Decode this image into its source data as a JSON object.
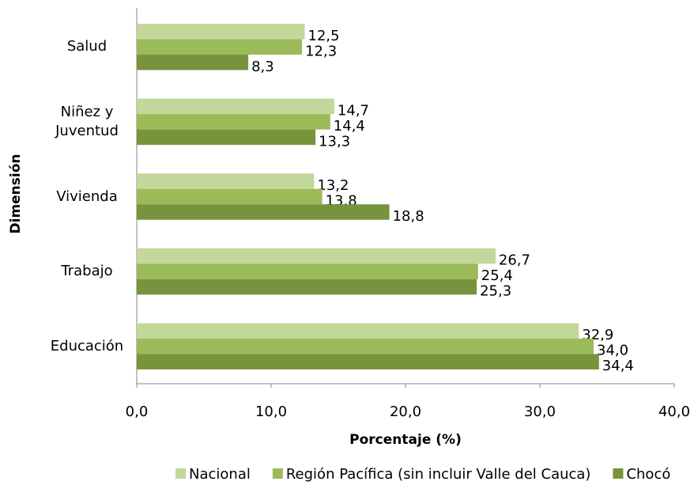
{
  "chart_data": {
    "type": "barh",
    "categories": [
      "Salud",
      "Niñez y Juventud",
      "Vivienda",
      "Trabajo",
      "Educación"
    ],
    "series": [
      {
        "name": "Nacional",
        "color": "#c4d79b",
        "values": [
          12.5,
          14.7,
          13.2,
          26.7,
          32.9
        ],
        "value_labels": [
          "12,5",
          "14,7",
          "13,2",
          "26,7",
          "32,9"
        ]
      },
      {
        "name": "Región Pacífica (sin incluir Valle del Cauca)",
        "color": "#9bbb59",
        "values": [
          12.3,
          14.4,
          13.8,
          25.4,
          34.0
        ],
        "value_labels": [
          "12,3",
          "14,4",
          "13,8",
          "25,4",
          "34,0"
        ]
      },
      {
        "name": "Chocó",
        "color": "#77933c",
        "values": [
          8.3,
          13.3,
          18.8,
          25.3,
          34.4
        ],
        "value_labels": [
          "8,3",
          "13,3",
          "18,8",
          "25,3",
          "34,4"
        ]
      }
    ],
    "xlim": [
      0,
      40
    ],
    "xticks": [
      {
        "value": 0,
        "label": "0,0"
      },
      {
        "value": 10,
        "label": "10,0"
      },
      {
        "value": 20,
        "label": "20,0"
      },
      {
        "value": 30,
        "label": "30,0"
      },
      {
        "value": 40,
        "label": "40,0"
      }
    ],
    "xlabel": "Porcentaje (%)",
    "ylabel": "Dimensión",
    "legend": "bottom"
  }
}
